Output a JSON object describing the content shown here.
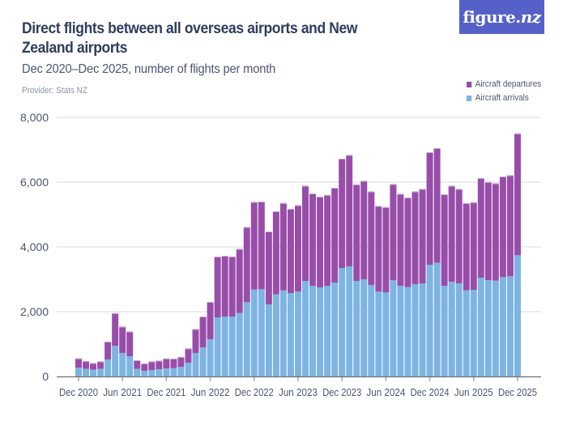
{
  "header": {
    "title": "Direct flights between all overseas airports and New Zealand airports",
    "subtitle": "Dec 2020–Dec 2025, number of flights per month",
    "provider": "Provider: Stats NZ"
  },
  "logo": {
    "text_main": "figure.",
    "text_italic": "nz",
    "color": "#5561c9"
  },
  "colors": {
    "departures": "#984ea9",
    "arrivals": "#7db4e2",
    "gridline": "#e6e6e6",
    "axis": "#707070"
  },
  "chart_data": {
    "type": "bar",
    "stacked": true,
    "title": "Direct flights between all overseas airports and New Zealand airports",
    "subtitle": "Dec 2020–Dec 2025, number of flights per month",
    "xlabel": "",
    "ylabel": "",
    "ylim": [
      0,
      8000
    ],
    "yticks": [
      0,
      2000,
      4000,
      6000,
      8000
    ],
    "ytick_labels": [
      "0",
      "2,000",
      "4,000",
      "6,000",
      "8,000"
    ],
    "xtick_labels": [
      "Dec 2020",
      "Jun 2021",
      "Dec 2021",
      "Jun 2022",
      "Dec 2022",
      "Jun 2023",
      "Dec 2023",
      "Jun 2024",
      "Dec 2024",
      "Jun 2025",
      "Dec 2025"
    ],
    "xtick_every": 6,
    "grid": true,
    "legend_position": "top-right",
    "categories": [
      "Dec 2020",
      "Jan 2021",
      "Feb 2021",
      "Mar 2021",
      "Apr 2021",
      "May 2021",
      "Jun 2021",
      "Jul 2021",
      "Aug 2021",
      "Sep 2021",
      "Oct 2021",
      "Nov 2021",
      "Dec 2021",
      "Jan 2022",
      "Feb 2022",
      "Mar 2022",
      "Apr 2022",
      "May 2022",
      "Jun 2022",
      "Jul 2022",
      "Aug 2022",
      "Sep 2022",
      "Oct 2022",
      "Nov 2022",
      "Dec 2022",
      "Jan 2023",
      "Feb 2023",
      "Mar 2023",
      "Apr 2023",
      "May 2023",
      "Jun 2023",
      "Jul 2023",
      "Aug 2023",
      "Sep 2023",
      "Oct 2023",
      "Nov 2023",
      "Dec 2023",
      "Jan 2024",
      "Feb 2024",
      "Mar 2024",
      "Apr 2024",
      "May 2024",
      "Jun 2024",
      "Jul 2024",
      "Aug 2024",
      "Sep 2024",
      "Oct 2024",
      "Nov 2024",
      "Dec 2024",
      "Jan 2025",
      "Feb 2025",
      "Mar 2025",
      "Apr 2025",
      "May 2025",
      "Jun 2025",
      "Jul 2025",
      "Aug 2025",
      "Sep 2025",
      "Oct 2025",
      "Nov 2025",
      "Dec 2025"
    ],
    "series": [
      {
        "name": "Aircraft arrivals",
        "color": "#7db4e2",
        "values": [
          270,
          235,
          210,
          235,
          525,
          945,
          725,
          625,
          235,
          175,
          200,
          225,
          250,
          258,
          292,
          425,
          725,
          900,
          1145,
          1825,
          1850,
          1842,
          1958,
          2292,
          2683,
          2692,
          2225,
          2533,
          2658,
          2575,
          2625,
          2950,
          2800,
          2750,
          2800,
          2900,
          3350,
          3400,
          2950,
          3000,
          2825,
          2625,
          2600,
          2967,
          2800,
          2758,
          2850,
          2875,
          3450,
          3508,
          2800,
          2925,
          2875,
          2658,
          2675,
          3050,
          2975,
          2958,
          3067,
          3092,
          3742
        ]
      },
      {
        "name": "Aircraft departures",
        "color": "#984ea9",
        "values": [
          265,
          215,
          182,
          207,
          525,
          988,
          792,
          742,
          240,
          200,
          242,
          242,
          283,
          267,
          291,
          420,
          717,
          925,
          1130,
          1850,
          1850,
          1841,
          1959,
          2300,
          2684,
          2683,
          2225,
          2542,
          2675,
          2575,
          2642,
          2917,
          2825,
          2775,
          2783,
          2900,
          3350,
          3417,
          2958,
          3017,
          2867,
          2617,
          2608,
          2950,
          2817,
          2742,
          2842,
          2892,
          3450,
          3517,
          2800,
          2942,
          2892,
          2667,
          2683,
          3050,
          3008,
          2984,
          3083,
          3100,
          3741
        ]
      }
    ]
  }
}
